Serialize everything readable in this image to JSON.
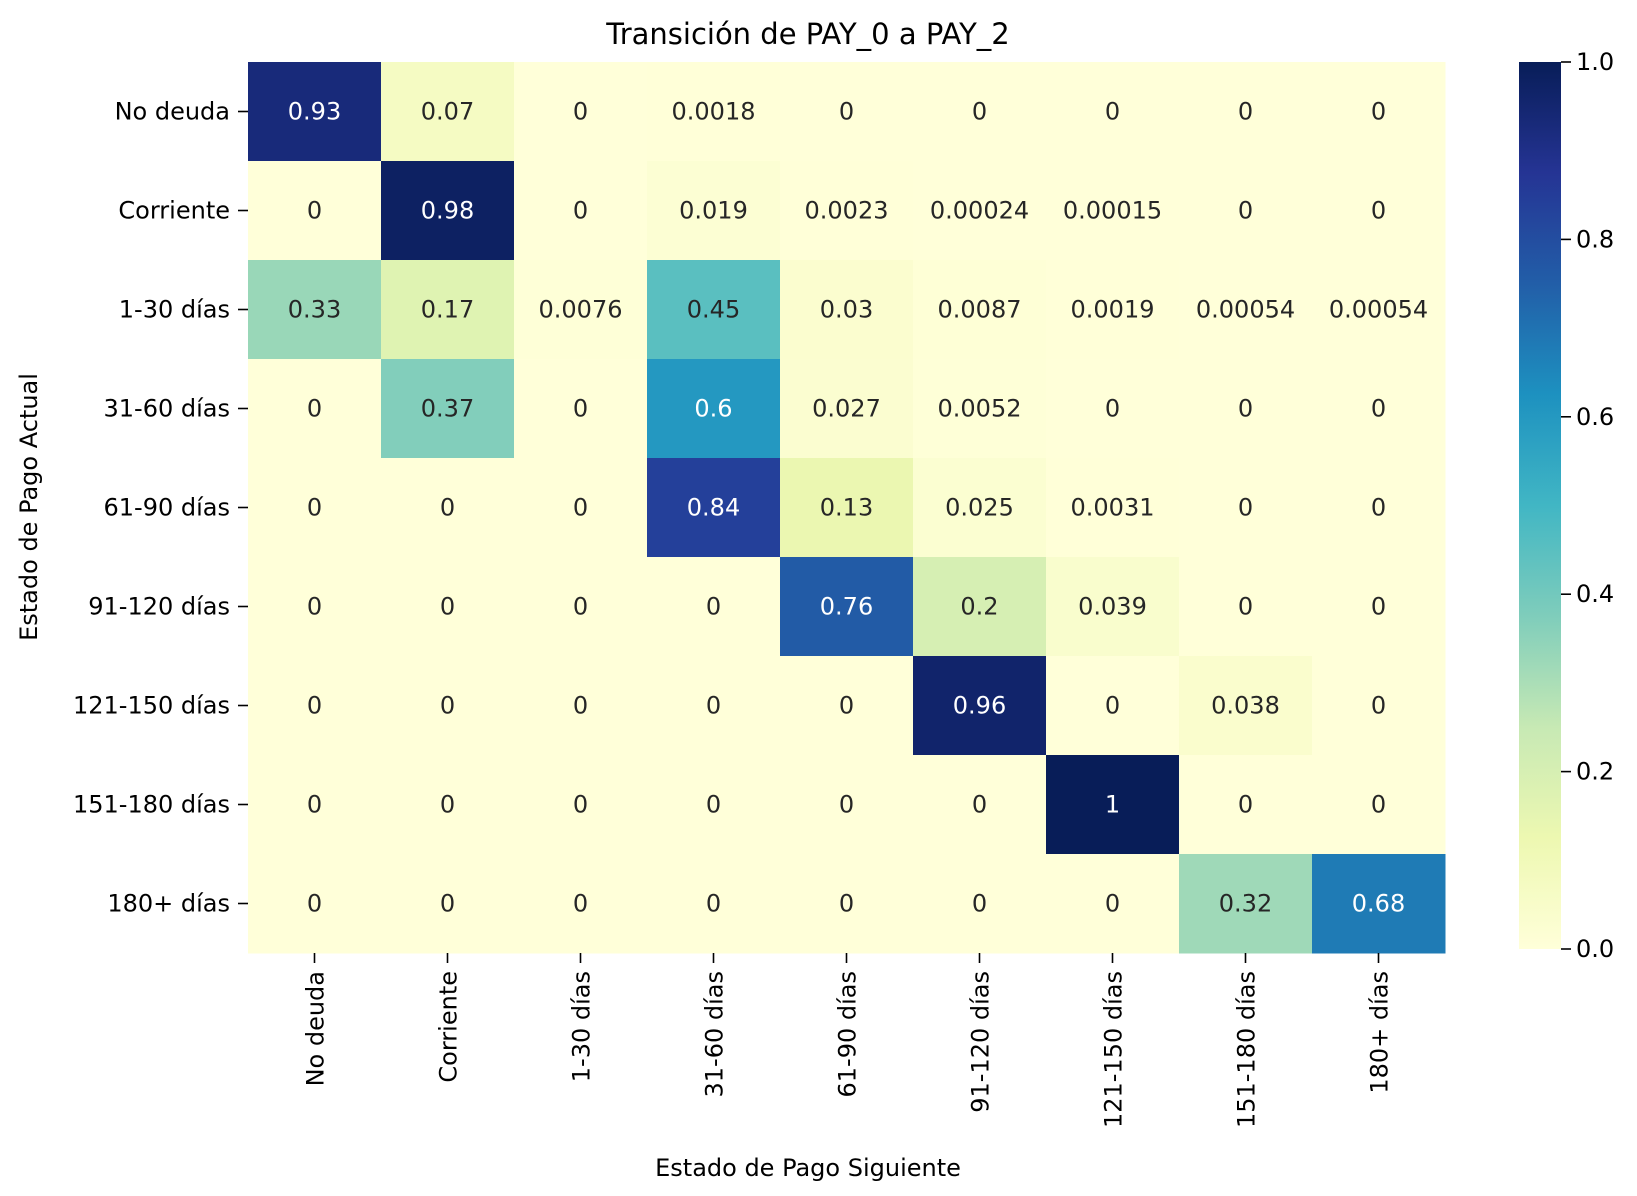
{
  "chart_data": {
    "type": "heatmap",
    "title": "Transición de PAY_0 a PAY_2",
    "xlabel": "Estado de Pago Siguiente",
    "ylabel": "Estado de Pago Actual",
    "x_categories": [
      "No deuda",
      "Corriente",
      "1-30 días",
      "31-60 días",
      "61-90 días",
      "91-120 días",
      "121-150 días",
      "151-180 días",
      "180+ días"
    ],
    "y_categories": [
      "No deuda",
      "Corriente",
      "1-30 días",
      "31-60 días",
      "61-90 días",
      "91-120 días",
      "121-150 días",
      "151-180 días",
      "180+ días"
    ],
    "values": [
      [
        0.93,
        0.07,
        0,
        0.0018,
        0,
        0,
        0,
        0,
        0
      ],
      [
        0,
        0.98,
        0,
        0.019,
        0.0023,
        0.00024,
        0.00015,
        0,
        0
      ],
      [
        0.33,
        0.17,
        0.0076,
        0.45,
        0.03,
        0.0087,
        0.0019,
        0.00054,
        0.00054
      ],
      [
        0,
        0.37,
        0,
        0.6,
        0.027,
        0.0052,
        0,
        0,
        0
      ],
      [
        0,
        0,
        0,
        0.84,
        0.13,
        0.025,
        0.0031,
        0,
        0
      ],
      [
        0,
        0,
        0,
        0,
        0.76,
        0.2,
        0.039,
        0,
        0
      ],
      [
        0,
        0,
        0,
        0,
        0,
        0.96,
        0,
        0.038,
        0
      ],
      [
        0,
        0,
        0,
        0,
        0,
        0,
        1,
        0,
        0
      ],
      [
        0,
        0,
        0,
        0,
        0,
        0,
        0,
        0.32,
        0.68
      ]
    ],
    "value_labels": [
      [
        "0.93",
        "0.07",
        "0",
        "0.0018",
        "0",
        "0",
        "0",
        "0",
        "0"
      ],
      [
        "0",
        "0.98",
        "0",
        "0.019",
        "0.0023",
        "0.00024",
        "0.00015",
        "0",
        "0"
      ],
      [
        "0.33",
        "0.17",
        "0.0076",
        "0.45",
        "0.03",
        "0.0087",
        "0.0019",
        "0.00054",
        "0.00054"
      ],
      [
        "0",
        "0.37",
        "0",
        "0.6",
        "0.027",
        "0.0052",
        "0",
        "0",
        "0"
      ],
      [
        "0",
        "0",
        "0",
        "0.84",
        "0.13",
        "0.025",
        "0.0031",
        "0",
        "0"
      ],
      [
        "0",
        "0",
        "0",
        "0",
        "0.76",
        "0.2",
        "0.039",
        "0",
        "0"
      ],
      [
        "0",
        "0",
        "0",
        "0",
        "0",
        "0.96",
        "0",
        "0.038",
        "0"
      ],
      [
        "0",
        "0",
        "0",
        "0",
        "0",
        "0",
        "1",
        "0",
        "0"
      ],
      [
        "0",
        "0",
        "0",
        "0",
        "0",
        "0",
        "0",
        "0.32",
        "0.68"
      ]
    ],
    "colorbar": {
      "range": [
        0,
        1
      ],
      "ticks": [
        0,
        0.2,
        0.4,
        0.6,
        0.8,
        1
      ],
      "tick_labels": [
        "0.0",
        "0.2",
        "0.4",
        "0.6",
        "0.8",
        "1.0"
      ],
      "colormap": "YlGnBu"
    },
    "colors": {
      "text_dark": "#262626",
      "text_light": "#ffffff",
      "colormap_stops": [
        "#ffffd9",
        "#edf8b1",
        "#c7e9b4",
        "#7fcdbb",
        "#41b6c4",
        "#1d91c0",
        "#225ea8",
        "#253494",
        "#081d58"
      ]
    },
    "grid": false,
    "legend": "colorbar-right"
  }
}
